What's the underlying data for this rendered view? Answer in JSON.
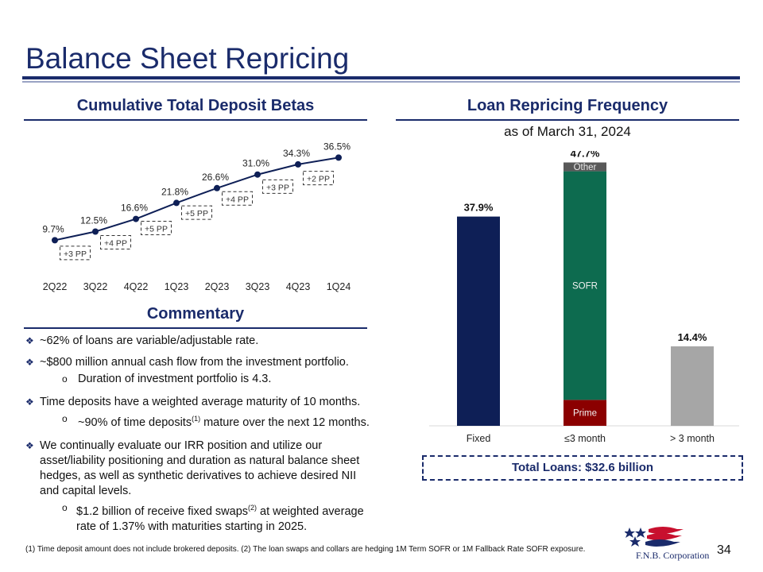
{
  "title": "Balance Sheet Repricing",
  "deposit_section": {
    "heading": "Cumulative Total Deposit Betas"
  },
  "loan_section": {
    "heading": "Loan Repricing Frequency",
    "subheading": "as of March 31, 2024"
  },
  "commentary": {
    "heading": "Commentary",
    "bullets": {
      "b1": "~62% of loans are variable/adjustable rate.",
      "b2": "~$800 million annual cash flow from the investment portfolio.",
      "b2_sub": "Duration of investment portfolio is 4.3.",
      "b3": "Time deposits have a weighted average maturity of 10 months.",
      "b3_sub_pre": "~90% of time deposits",
      "b3_sub_sup": "(1)",
      "b3_sub_post": " mature over the next 12 months.",
      "b4": "We continually evaluate our IRR position and utilize our asset/liability positioning and duration as natural balance sheet hedges, as well as synthetic derivatives to achieve desired NII and capital levels.",
      "b4_sub_pre": "$1.2 billion of receive fixed swaps",
      "b4_sub_sup": "(2)",
      "b4_sub_post": " at weighted average rate of 1.37% with maturities starting in 2025."
    }
  },
  "total_loans": "Total Loans: $32.6 billion",
  "footnote": "(1) Time deposit amount does not include brokered deposits. (2) The loan swaps and collars are hedging 1M Term SOFR or 1M Fallback Rate SOFR exposure.",
  "page_number": "34",
  "logo": {
    "text": "F.N.B. Corporation",
    "icon": "fnb-flag-logo-icon"
  },
  "colors": {
    "navy": "#1a2b6b",
    "bar_navy": "#0e1f56",
    "sofr_green": "#0d6b4f",
    "prime_red": "#8b0000",
    "other_gray": "#595959",
    "gray": "#a6a6a6"
  },
  "chart_data": [
    {
      "type": "line",
      "title": "Cumulative Total Deposit Betas",
      "categories": [
        "2Q22",
        "3Q22",
        "4Q22",
        "1Q23",
        "2Q23",
        "3Q23",
        "4Q23",
        "1Q24"
      ],
      "values": [
        9.7,
        12.5,
        16.6,
        21.8,
        26.6,
        31.0,
        34.3,
        36.5
      ],
      "value_labels": [
        "9.7%",
        "12.5%",
        "16.6%",
        "21.8%",
        "26.6%",
        "31.0%",
        "34.3%",
        "36.5%"
      ],
      "increment_labels": [
        "+3 PP",
        "+4 PP",
        "+5 PP",
        "+5 PP",
        "+4 PP",
        "+3 PP",
        "+2  PP"
      ],
      "ylim": [
        0,
        45
      ]
    },
    {
      "type": "bar",
      "title": "Loan Repricing Frequency",
      "categories": [
        "Fixed",
        "≤3 month",
        "> 3 month"
      ],
      "totals": [
        37.9,
        47.7,
        14.4
      ],
      "total_labels": [
        "37.9%",
        "47.7%",
        "14.4%"
      ],
      "stack": [
        {
          "name": "Prime",
          "value": 4.7
        },
        {
          "name": "SOFR",
          "value": 41.4
        },
        {
          "name": "Other",
          "value": 1.6
        }
      ],
      "ylim": [
        0,
        55
      ]
    }
  ]
}
